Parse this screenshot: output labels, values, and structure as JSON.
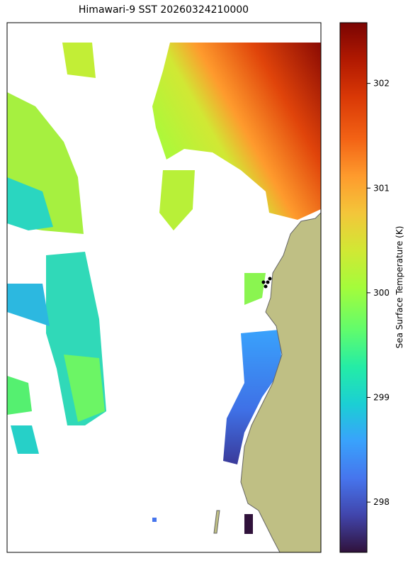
{
  "title": "Himawari-9 SST 20260324210000",
  "colorbar": {
    "label": "Sea Surface Temperature (K)",
    "lim": [
      297.52,
      302.58
    ],
    "ticks": [
      298,
      299,
      300,
      301,
      302
    ]
  }
}
